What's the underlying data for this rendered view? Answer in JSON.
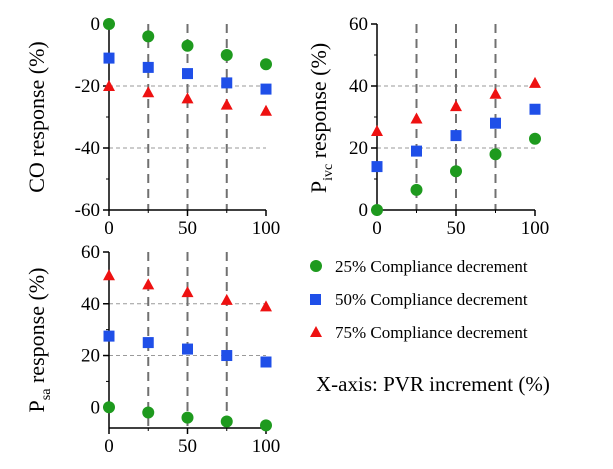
{
  "colors": {
    "series_25": "#1e9a1e",
    "series_50": "#1f4fe8",
    "series_75": "#ee1111",
    "axis": "#000000",
    "dashed_vertical": "#707070",
    "dashed_horizontal": "#9a9a9a"
  },
  "legend": {
    "items": [
      {
        "label": "25% Compliance decrement",
        "marker": "circle",
        "color": "#1e9a1e"
      },
      {
        "label": "50% Compliance decrement",
        "marker": "square",
        "color": "#1f4fe8"
      },
      {
        "label": "75% Compliance decrement",
        "marker": "triangle",
        "color": "#ee1111"
      }
    ],
    "placement": "bottom-right"
  },
  "x_axis_note": "X-axis: PVR increment (%)",
  "chart_data": [
    {
      "type": "scatter",
      "ylabel_main": "CO response (%)",
      "ylabel_sub": "",
      "ylabel_tail": "",
      "xlim": [
        0,
        100
      ],
      "ylim": [
        -60,
        0
      ],
      "xticks": [
        0,
        50,
        100
      ],
      "xtick_labels": [
        "0",
        "50",
        "100"
      ],
      "yticks": [
        -60,
        -40,
        -20,
        0
      ],
      "ytick_labels": [
        "-60",
        "-40",
        "-20",
        "0"
      ],
      "dashed_x": [
        25,
        50,
        75
      ],
      "dashed_y": [
        -20,
        -40
      ],
      "x": [
        0,
        25,
        50,
        75,
        100
      ],
      "series": [
        {
          "name": "25% Compliance decrement",
          "marker": "circle",
          "values": [
            0,
            -4,
            -7,
            -10,
            -13
          ]
        },
        {
          "name": "50% Compliance decrement",
          "marker": "square",
          "values": [
            -11,
            -14,
            -16,
            -19,
            -21
          ]
        },
        {
          "name": "75% Compliance decrement",
          "marker": "triangle",
          "values": [
            -20,
            -22,
            -24,
            -26,
            -28
          ]
        }
      ]
    },
    {
      "type": "scatter",
      "ylabel_main": "P",
      "ylabel_sub": "ivc",
      "ylabel_tail": " response (%)",
      "xlim": [
        0,
        100
      ],
      "ylim": [
        0,
        60
      ],
      "xticks": [
        0,
        50,
        100
      ],
      "xtick_labels": [
        "0",
        "50",
        "100"
      ],
      "yticks": [
        0,
        20,
        40,
        60
      ],
      "ytick_labels": [
        "0",
        "20",
        "40",
        "60"
      ],
      "dashed_x": [
        25,
        50,
        75
      ],
      "dashed_y": [
        20,
        40
      ],
      "x": [
        0,
        25,
        50,
        75,
        100
      ],
      "series": [
        {
          "name": "25% Compliance decrement",
          "marker": "circle",
          "values": [
            0,
            6.5,
            12.5,
            18,
            23
          ]
        },
        {
          "name": "50% Compliance decrement",
          "marker": "square",
          "values": [
            14,
            19,
            24,
            28,
            32.5
          ]
        },
        {
          "name": "75% Compliance decrement",
          "marker": "triangle",
          "values": [
            25.5,
            29.5,
            33.5,
            37.5,
            41
          ]
        }
      ]
    },
    {
      "type": "scatter",
      "ylabel_main": "P",
      "ylabel_sub": "sa",
      "ylabel_tail": " response (%)",
      "xlim": [
        0,
        100
      ],
      "ylim": [
        -8,
        60
      ],
      "xticks": [
        0,
        50,
        100
      ],
      "xtick_labels": [
        "0",
        "50",
        "100"
      ],
      "yticks": [
        0,
        20,
        40,
        60
      ],
      "ytick_labels": [
        "0",
        "20",
        "40",
        "60"
      ],
      "dashed_x": [
        25,
        50,
        75
      ],
      "dashed_y": [
        20,
        40
      ],
      "x": [
        0,
        25,
        50,
        75,
        100
      ],
      "series": [
        {
          "name": "25% Compliance decrement",
          "marker": "circle",
          "values": [
            0,
            -2,
            -4,
            -5.5,
            -7
          ]
        },
        {
          "name": "50% Compliance decrement",
          "marker": "square",
          "values": [
            27.5,
            25,
            22.5,
            20,
            17.5
          ]
        },
        {
          "name": "75% Compliance decrement",
          "marker": "triangle",
          "values": [
            51,
            47.5,
            44.5,
            41.5,
            39
          ]
        }
      ]
    }
  ]
}
